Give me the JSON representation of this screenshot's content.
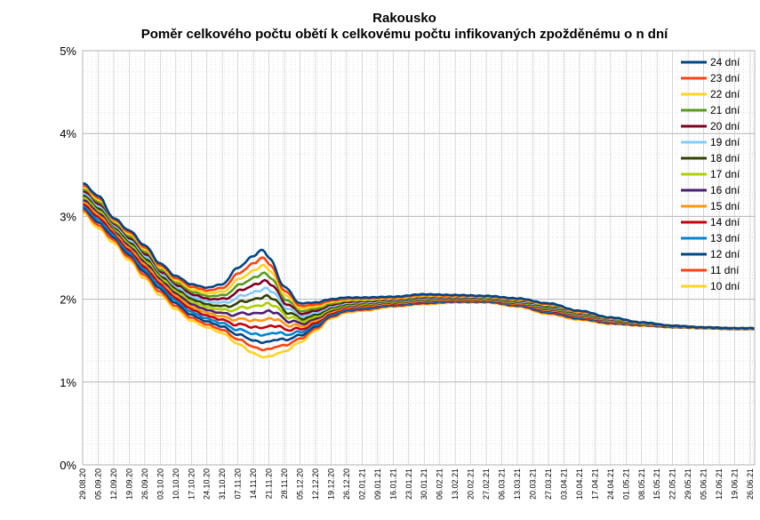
{
  "chart_data": {
    "type": "line",
    "title": "Rakousko",
    "subtitle": "Poměr celkového počtu obětí k celkovému počtu infikovaných zpožděnému o n dní",
    "xlabel": "",
    "ylabel": "",
    "ylim": [
      0,
      0.05
    ],
    "yticks": [
      "0%",
      "1%",
      "2%",
      "3%",
      "4%",
      "5%"
    ],
    "x_start": "29.08.20",
    "x_end": "28.06.21",
    "xticks": [
      "29.08.20",
      "05.09.20",
      "12.09.20",
      "19.09.20",
      "26.09.20",
      "03.10.20",
      "10.10.20",
      "17.10.20",
      "24.10.20",
      "31.10.20",
      "07.11.20",
      "14.11.20",
      "21.11.20",
      "28.11.20",
      "05.12.20",
      "12.12.20",
      "19.12.20",
      "26.12.20",
      "02.01.21",
      "09.01.21",
      "16.01.21",
      "23.01.21",
      "30.01.21",
      "06.02.21",
      "13.02.21",
      "20.02.21",
      "27.02.21",
      "06.03.21",
      "13.03.21",
      "20.03.21",
      "27.03.21",
      "03.04.21",
      "10.04.21",
      "17.04.21",
      "24.04.21",
      "01.05.21",
      "08.05.21",
      "15.05.21",
      "22.05.21",
      "29.05.21",
      "05.06.21",
      "12.06.21",
      "19.06.21",
      "26.06.21"
    ],
    "grid": true,
    "legend_position": "top-right",
    "series": [
      {
        "name": "24 dní",
        "color": "#004586",
        "lag": 24
      },
      {
        "name": "23 dní",
        "color": "#ff420e",
        "lag": 23
      },
      {
        "name": "22 dní",
        "color": "#ffd320",
        "lag": 22
      },
      {
        "name": "21 dní",
        "color": "#579d1c",
        "lag": 21
      },
      {
        "name": "20 dní",
        "color": "#7e0021",
        "lag": 20
      },
      {
        "name": "19 dní",
        "color": "#83caff",
        "lag": 19
      },
      {
        "name": "18 dní",
        "color": "#314004",
        "lag": 18
      },
      {
        "name": "17 dní",
        "color": "#aecf00",
        "lag": 17
      },
      {
        "name": "16 dní",
        "color": "#4b1f6f",
        "lag": 16
      },
      {
        "name": "15 dní",
        "color": "#ff950e",
        "lag": 15
      },
      {
        "name": "14 dní",
        "color": "#c5000b",
        "lag": 14
      },
      {
        "name": "13 dní",
        "color": "#0084d1",
        "lag": 13
      },
      {
        "name": "12 dní",
        "color": "#004586",
        "lag": 12
      },
      {
        "name": "11 dní",
        "color": "#ff420e",
        "lag": 11
      },
      {
        "name": "10 dní",
        "color": "#ffd320",
        "lag": 10
      }
    ],
    "envelope_lag24": [
      [
        "2020-08-29",
        0.034
      ],
      [
        "2020-09-05",
        0.0325
      ],
      [
        "2020-09-12",
        0.0298
      ],
      [
        "2020-09-19",
        0.0283
      ],
      [
        "2020-09-26",
        0.0265
      ],
      [
        "2020-10-03",
        0.0243
      ],
      [
        "2020-10-10",
        0.0228
      ],
      [
        "2020-10-17",
        0.0218
      ],
      [
        "2020-10-24",
        0.0214
      ],
      [
        "2020-10-31",
        0.0218
      ],
      [
        "2020-11-07",
        0.0238
      ],
      [
        "2020-11-14",
        0.0252
      ],
      [
        "2020-11-18",
        0.026
      ],
      [
        "2020-11-21",
        0.025
      ],
      [
        "2020-11-28",
        0.0215
      ],
      [
        "2020-12-05",
        0.0195
      ],
      [
        "2020-12-12",
        0.0196
      ],
      [
        "2020-12-19",
        0.02
      ],
      [
        "2020-12-26",
        0.0202
      ],
      [
        "2021-01-02",
        0.0202
      ],
      [
        "2021-01-16",
        0.0203
      ],
      [
        "2021-01-30",
        0.0206
      ],
      [
        "2021-02-13",
        0.0205
      ],
      [
        "2021-02-27",
        0.0204
      ],
      [
        "2021-03-13",
        0.0201
      ],
      [
        "2021-03-27",
        0.0195
      ],
      [
        "2021-04-10",
        0.0186
      ],
      [
        "2021-04-24",
        0.0178
      ],
      [
        "2021-05-08",
        0.0172
      ],
      [
        "2021-05-22",
        0.0168
      ],
      [
        "2021-06-05",
        0.0166
      ],
      [
        "2021-06-19",
        0.0165
      ],
      [
        "2021-06-28",
        0.0165
      ]
    ],
    "envelope_lag10": [
      [
        "2020-08-29",
        0.0305
      ],
      [
        "2020-09-05",
        0.0286
      ],
      [
        "2020-09-12",
        0.0268
      ],
      [
        "2020-09-19",
        0.0247
      ],
      [
        "2020-09-26",
        0.0225
      ],
      [
        "2020-10-03",
        0.0205
      ],
      [
        "2020-10-10",
        0.0188
      ],
      [
        "2020-10-17",
        0.0174
      ],
      [
        "2020-10-24",
        0.0166
      ],
      [
        "2020-10-31",
        0.0159
      ],
      [
        "2020-11-07",
        0.0146
      ],
      [
        "2020-11-14",
        0.0135
      ],
      [
        "2020-11-18",
        0.013
      ],
      [
        "2020-11-21",
        0.0131
      ],
      [
        "2020-11-28",
        0.0137
      ],
      [
        "2020-12-05",
        0.0148
      ],
      [
        "2020-12-12",
        0.0162
      ],
      [
        "2020-12-19",
        0.0177
      ],
      [
        "2020-12-26",
        0.0184
      ],
      [
        "2021-01-02",
        0.0186
      ],
      [
        "2021-01-16",
        0.0191
      ],
      [
        "2021-01-30",
        0.0194
      ],
      [
        "2021-02-13",
        0.0196
      ],
      [
        "2021-02-27",
        0.0196
      ],
      [
        "2021-03-13",
        0.0191
      ],
      [
        "2021-03-27",
        0.0182
      ],
      [
        "2021-04-10",
        0.0175
      ],
      [
        "2021-04-24",
        0.017
      ],
      [
        "2021-05-08",
        0.0168
      ],
      [
        "2021-05-22",
        0.0166
      ],
      [
        "2021-06-05",
        0.0165
      ],
      [
        "2021-06-19",
        0.0164
      ],
      [
        "2021-06-28",
        0.0164
      ]
    ]
  }
}
